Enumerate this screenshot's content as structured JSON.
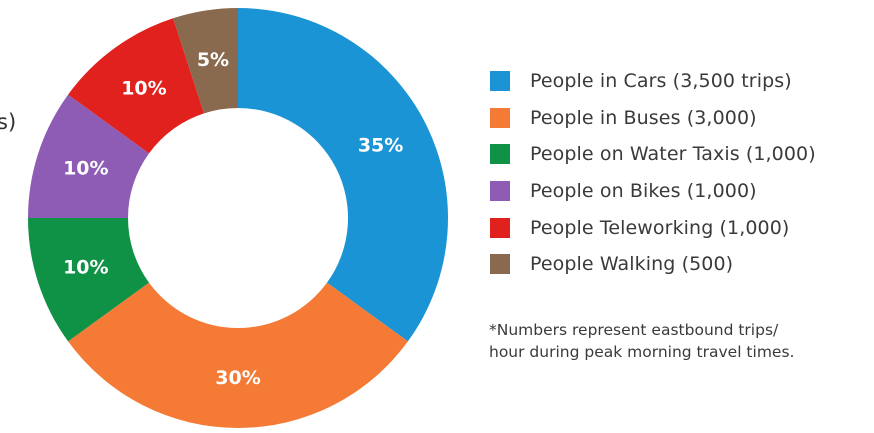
{
  "chart_data": {
    "type": "pie",
    "donut": true,
    "start": "top, clockwise",
    "slices": [
      {
        "label": "People in Cars (3,500 trips)",
        "value": 35,
        "display": "35%",
        "color": "#1b94d5"
      },
      {
        "label": "People in Buses (3,000)",
        "value": 30,
        "display": "30%",
        "color": "#f47a36"
      },
      {
        "label": "People on Water Taxis (1,000)",
        "value": 10,
        "display": "10%",
        "color": "#0f9246"
      },
      {
        "label": "People on Bikes (1,000)",
        "value": 10,
        "display": "10%",
        "color": "#8e5cb5"
      },
      {
        "label": "People Teleworking (1,000)",
        "value": 10,
        "display": "10%",
        "color": "#e0211d"
      },
      {
        "label": "People Walking (500)",
        "value": 5,
        "display": "5%",
        "color": "#8a6a4f"
      }
    ],
    "legend_position": "right"
  },
  "footnote": {
    "line1": "*Numbers represent eastbound trips/",
    "line2": "hour during peak morning travel times."
  },
  "edge_fragment": "s)"
}
